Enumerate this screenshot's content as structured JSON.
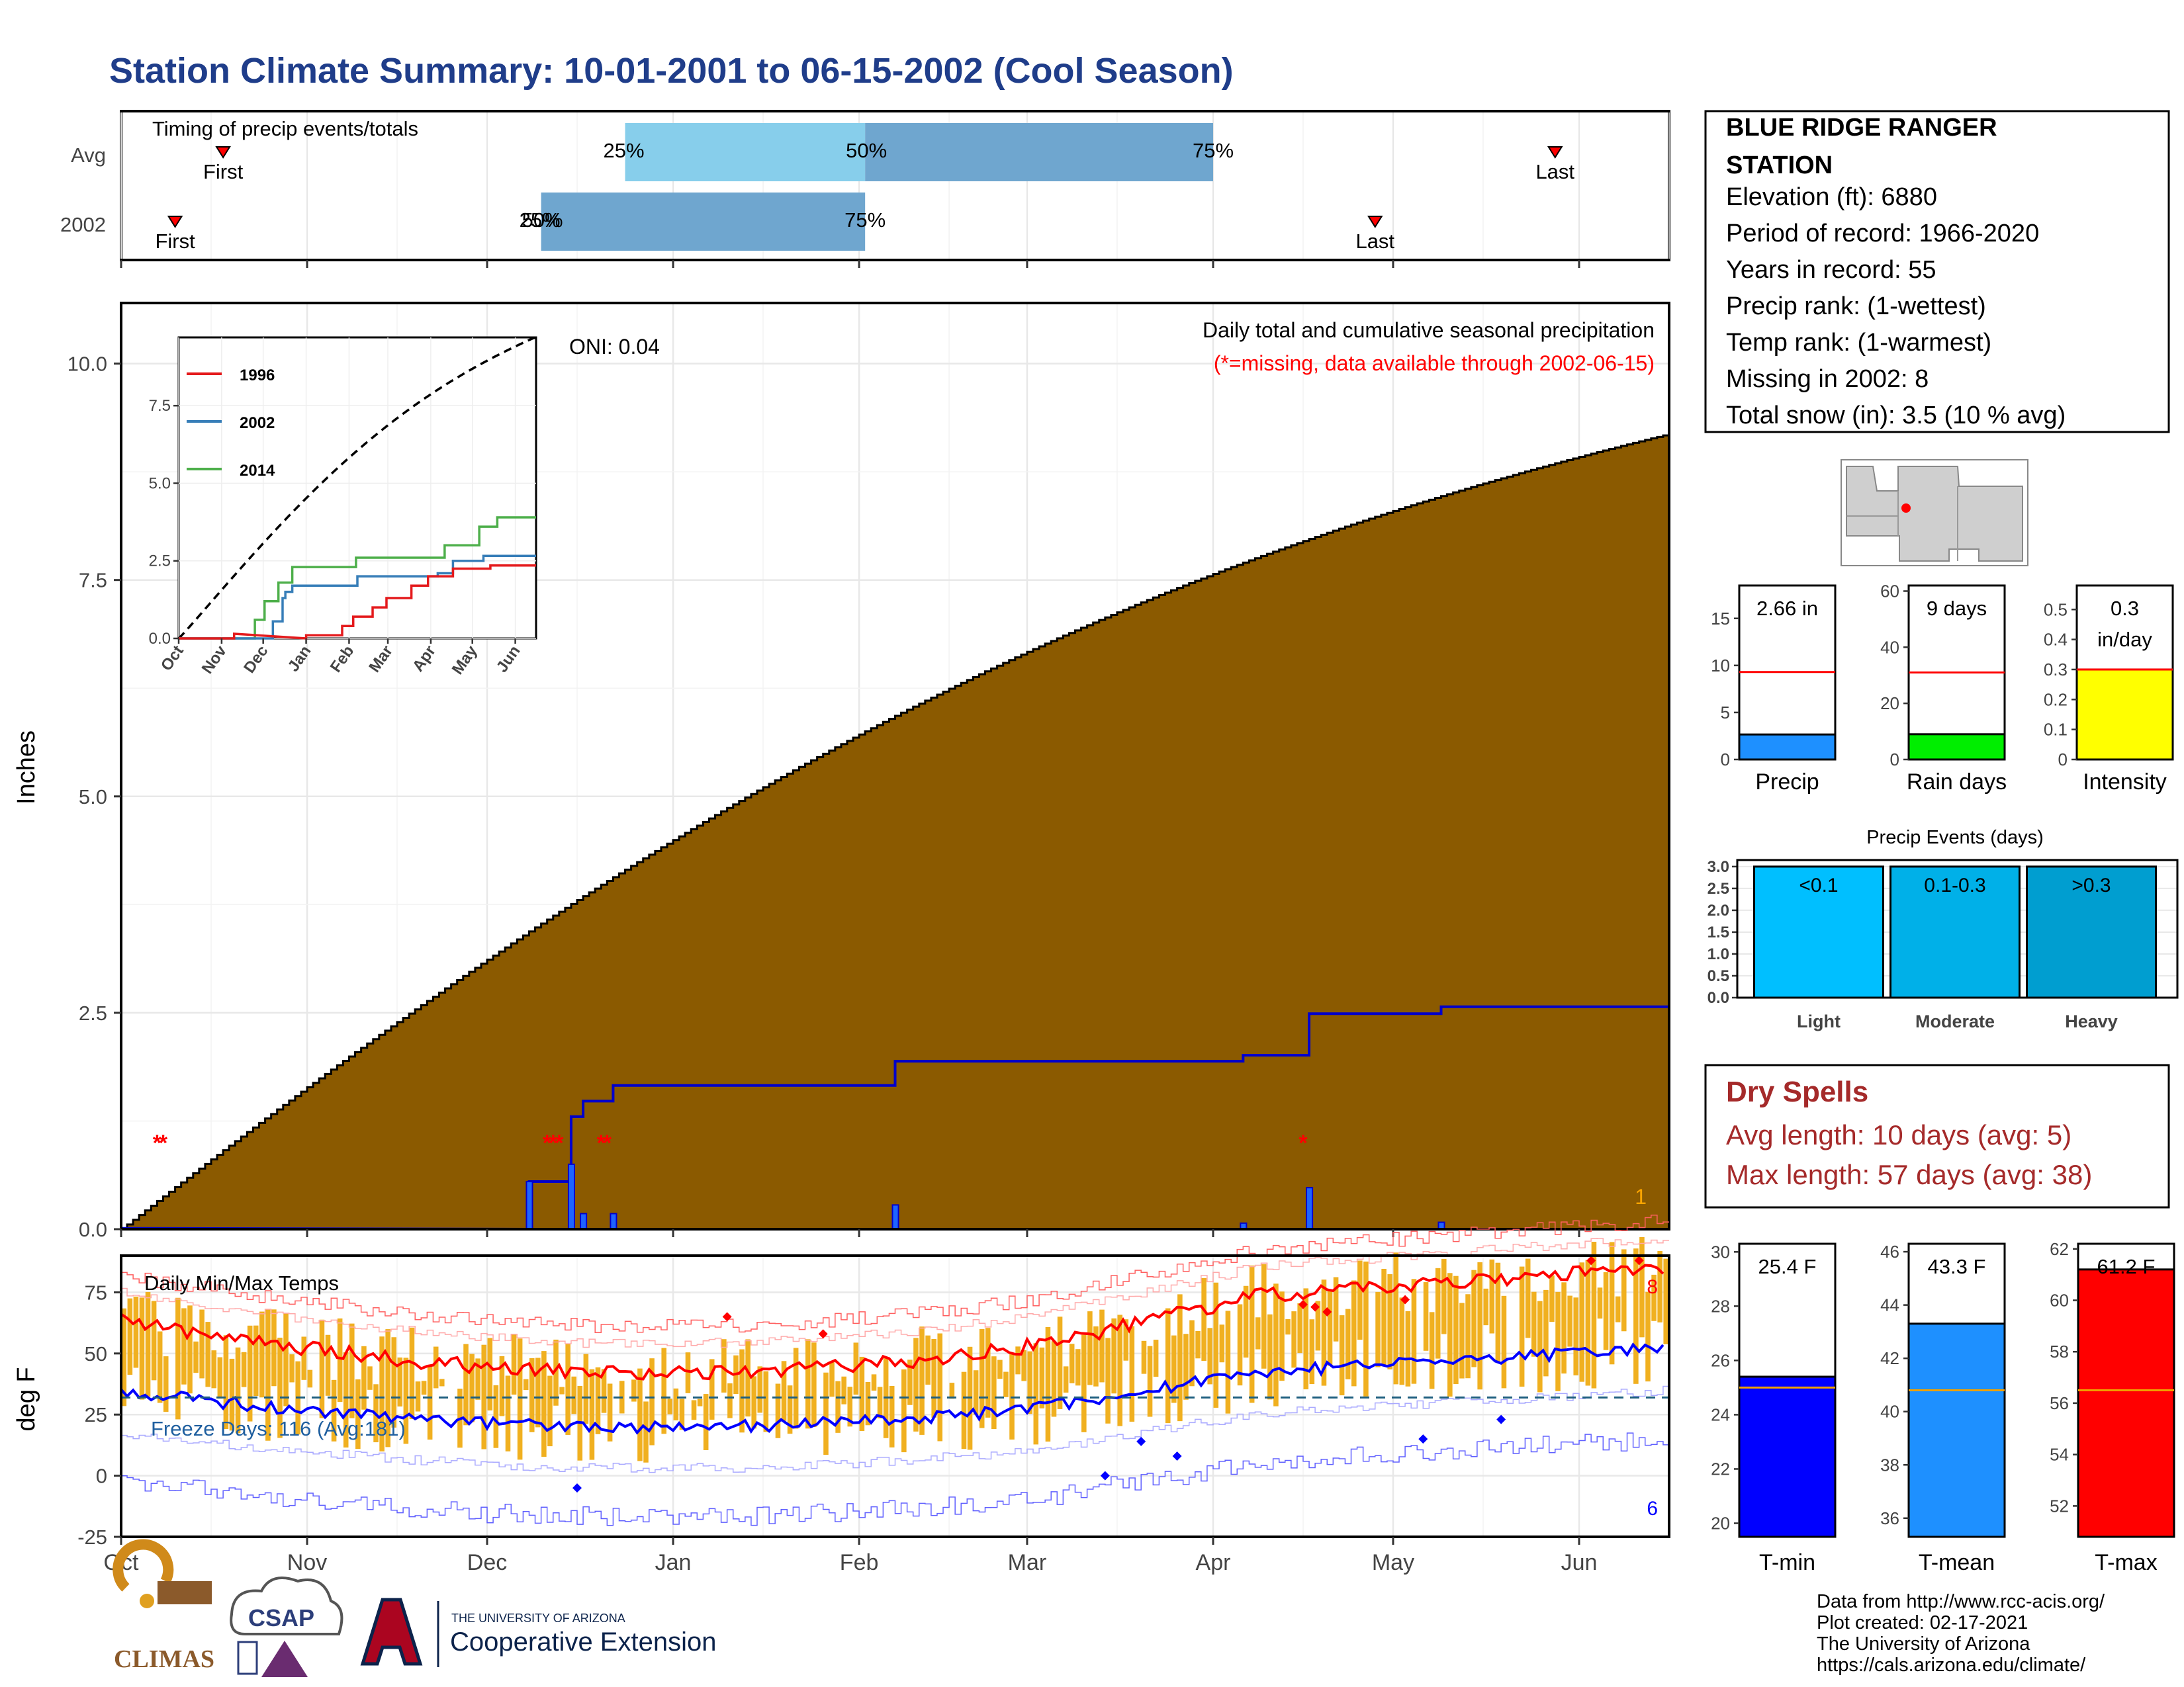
{
  "title": "Station Climate Summary: 10-01-2001 to 06-15-2002 (Cool Season)",
  "colors": {
    "title": "#1f3d8a",
    "precip_fill": "#8b5a00",
    "normal_fill": "#e0e0e0",
    "cumulative_line": "#0000cc",
    "missing": "#ff0000",
    "timing_light": "#87ceeb",
    "timing_dark": "#6fa6cf",
    "dry_spell": "#a52a2a",
    "tmin": "#0000ff",
    "tmean": "#1e90ff",
    "tmax": "#ff0000",
    "temp_bar": "#f0b020",
    "freeze_line": "#1f5f7f"
  },
  "months": [
    "Oct",
    "Nov",
    "Dec",
    "Jan",
    "Feb",
    "Mar",
    "Apr",
    "May",
    "Jun"
  ],
  "timing": {
    "title": "Timing of precip events/totals",
    "rows": [
      {
        "label": "Avg",
        "first_label": "First",
        "last_label": "Last",
        "p25_label": "25%",
        "p50_label": "50%",
        "p75_label": "75%",
        "first_day": 17,
        "p25_day": 84,
        "p50_day": 124,
        "p75_day": 182,
        "last_day": 239
      },
      {
        "label": "2002",
        "first_label": "First",
        "last_label": "Last",
        "p25_label": "25%",
        "p50_label": "50%",
        "p75_label": "75%",
        "first_day": 9,
        "p25_day": 70,
        "p50_day": 70,
        "p75_day": 124,
        "last_day": 209
      }
    ]
  },
  "main_panel": {
    "ylabel": "Inches",
    "label_line1": "Daily total and cumulative seasonal precipitation",
    "label_line2": "(*=missing, data available through 2002-06-15)",
    "corner_count": "1",
    "missing_marker": "*",
    "missing_days": [
      6,
      7,
      71,
      72,
      73,
      80,
      81,
      197
    ],
    "daily_bars": [
      {
        "day": 68,
        "value": 0.55
      },
      {
        "day": 75,
        "value": 0.75
      },
      {
        "day": 77,
        "value": 0.18
      },
      {
        "day": 82,
        "value": 0.18
      },
      {
        "day": 129,
        "value": 0.28
      },
      {
        "day": 187,
        "value": 0.07
      },
      {
        "day": 198,
        "value": 0.48
      },
      {
        "day": 220,
        "value": 0.08
      }
    ]
  },
  "inset": {
    "oni_label": "ONI: 0.04",
    "legend": [
      "1996",
      "2002",
      "2014"
    ],
    "ylim": [
      0,
      10
    ]
  },
  "temp_panel": {
    "title": "Daily Min/Max Temps",
    "ylabel": "deg F",
    "freeze_label": "Freeze Days: 116 (Avg:181)",
    "freeze_temp": 32,
    "count_high": "8",
    "count_low": "6",
    "ylim": [
      -25,
      90
    ]
  },
  "station": {
    "name": "BLUE RIDGE RANGER STATION",
    "lines": [
      "Elevation (ft): 6880",
      "Period of record: 1966-2020",
      "Years in record: 55",
      "Precip rank:  (1-wettest)",
      "Temp rank:  (1-warmest)",
      "Missing in 2002: 8",
      "Total snow (in): 3.5 (10 % avg)"
    ]
  },
  "small_bars": [
    {
      "label": "Precip",
      "value_text": "2.66 in",
      "value": 2.66,
      "avg": 9.3,
      "ticks": [
        0,
        5,
        10,
        15
      ],
      "ymax": 18.5,
      "color": "#1e90ff"
    },
    {
      "label": "Rain days",
      "value_text": "9 days",
      "value": 9,
      "avg": 31,
      "ticks": [
        0,
        20,
        40,
        60
      ],
      "ymax": 62,
      "color": "#00ee00"
    },
    {
      "label": "Intensity",
      "value_text": "0.3 in/day",
      "value": 0.3,
      "avg": 0.3,
      "ticks": [
        0.0,
        0.1,
        0.2,
        0.3,
        0.4,
        0.5
      ],
      "ymax": 0.58,
      "color": "#ffff00"
    }
  ],
  "precip_events": {
    "title": "Precip Events (days)",
    "yticks": [
      "0.0",
      "0.5",
      "1.0",
      "1.5",
      "2.0",
      "2.5",
      "3.0"
    ],
    "bars": [
      {
        "label": "Light",
        "text": "<0.1",
        "value": 3,
        "color": "#00bfff"
      },
      {
        "label": "Moderate",
        "text": "0.1-0.3",
        "value": 3,
        "color": "#00b0e8"
      },
      {
        "label": "Heavy",
        "text": ">0.3",
        "value": 3,
        "color": "#009ed0"
      }
    ]
  },
  "dry_spells": {
    "title": "Dry Spells",
    "avg_length": "Avg length: 10 days (avg: 5)",
    "max_length": "Max length: 57 days (avg: 38)"
  },
  "temp_bars": [
    {
      "label": "T-min",
      "value_text": "25.4 F",
      "value": 25.4,
      "avg": 25.0,
      "ticks": [
        20,
        22,
        24,
        26,
        28,
        30
      ],
      "ymin": 19.5,
      "ymax": 30.3,
      "color": "#0000ff"
    },
    {
      "label": "T-mean",
      "value_text": "43.3 F",
      "value": 43.3,
      "avg": 40.8,
      "ticks": [
        36,
        38,
        40,
        42,
        44,
        46
      ],
      "ymin": 35.3,
      "ymax": 46.3,
      "color": "#1e90ff"
    },
    {
      "label": "T-max",
      "value_text": "61.2 F",
      "value": 61.2,
      "avg": 56.5,
      "ticks": [
        52,
        54,
        56,
        58,
        60,
        62
      ],
      "ymin": 50.8,
      "ymax": 62.2,
      "color": "#ff0000"
    }
  ],
  "footer": {
    "credits": [
      "Data from http://www.rcc-acis.org/",
      "Plot created: 02-17-2021",
      "The University of Arizona",
      "https://cals.arizona.edu/climate/"
    ],
    "logo_climas": "CLIMAS",
    "logo_csap": "CSAP",
    "logo_ua_small": "THE UNIVERSITY OF ARIZONA",
    "logo_ua_big": "Cooperative Extension"
  }
}
